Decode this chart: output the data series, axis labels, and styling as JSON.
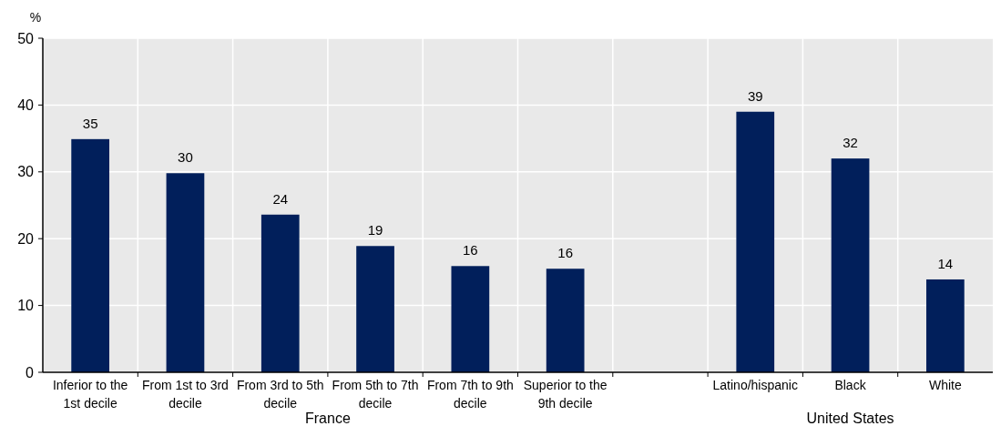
{
  "chart_data": {
    "type": "bar",
    "ylabel": "%",
    "categories": [
      "Inferior to the 1st decile",
      "From 1st to 3rd decile",
      "From 3rd to 5th decile",
      "From 5th to 7th decile",
      "From 7th to 9th decile",
      "Superior to the 9th decile",
      null,
      "Latino/hispanic",
      "Black",
      "White"
    ],
    "values": [
      34.9,
      29.8,
      23.6,
      18.9,
      15.9,
      15.5,
      null,
      39.0,
      32.0,
      13.9
    ],
    "value_labels": [
      "35",
      "30",
      "24",
      "19",
      "16",
      "16",
      null,
      "39",
      "32",
      "14"
    ],
    "color": "#011f5b",
    "ylim": [
      0,
      50
    ],
    "yticks": [
      0,
      10,
      20,
      30,
      40,
      50
    ],
    "grid": true,
    "annotations": [
      "France",
      "United States"
    ]
  }
}
